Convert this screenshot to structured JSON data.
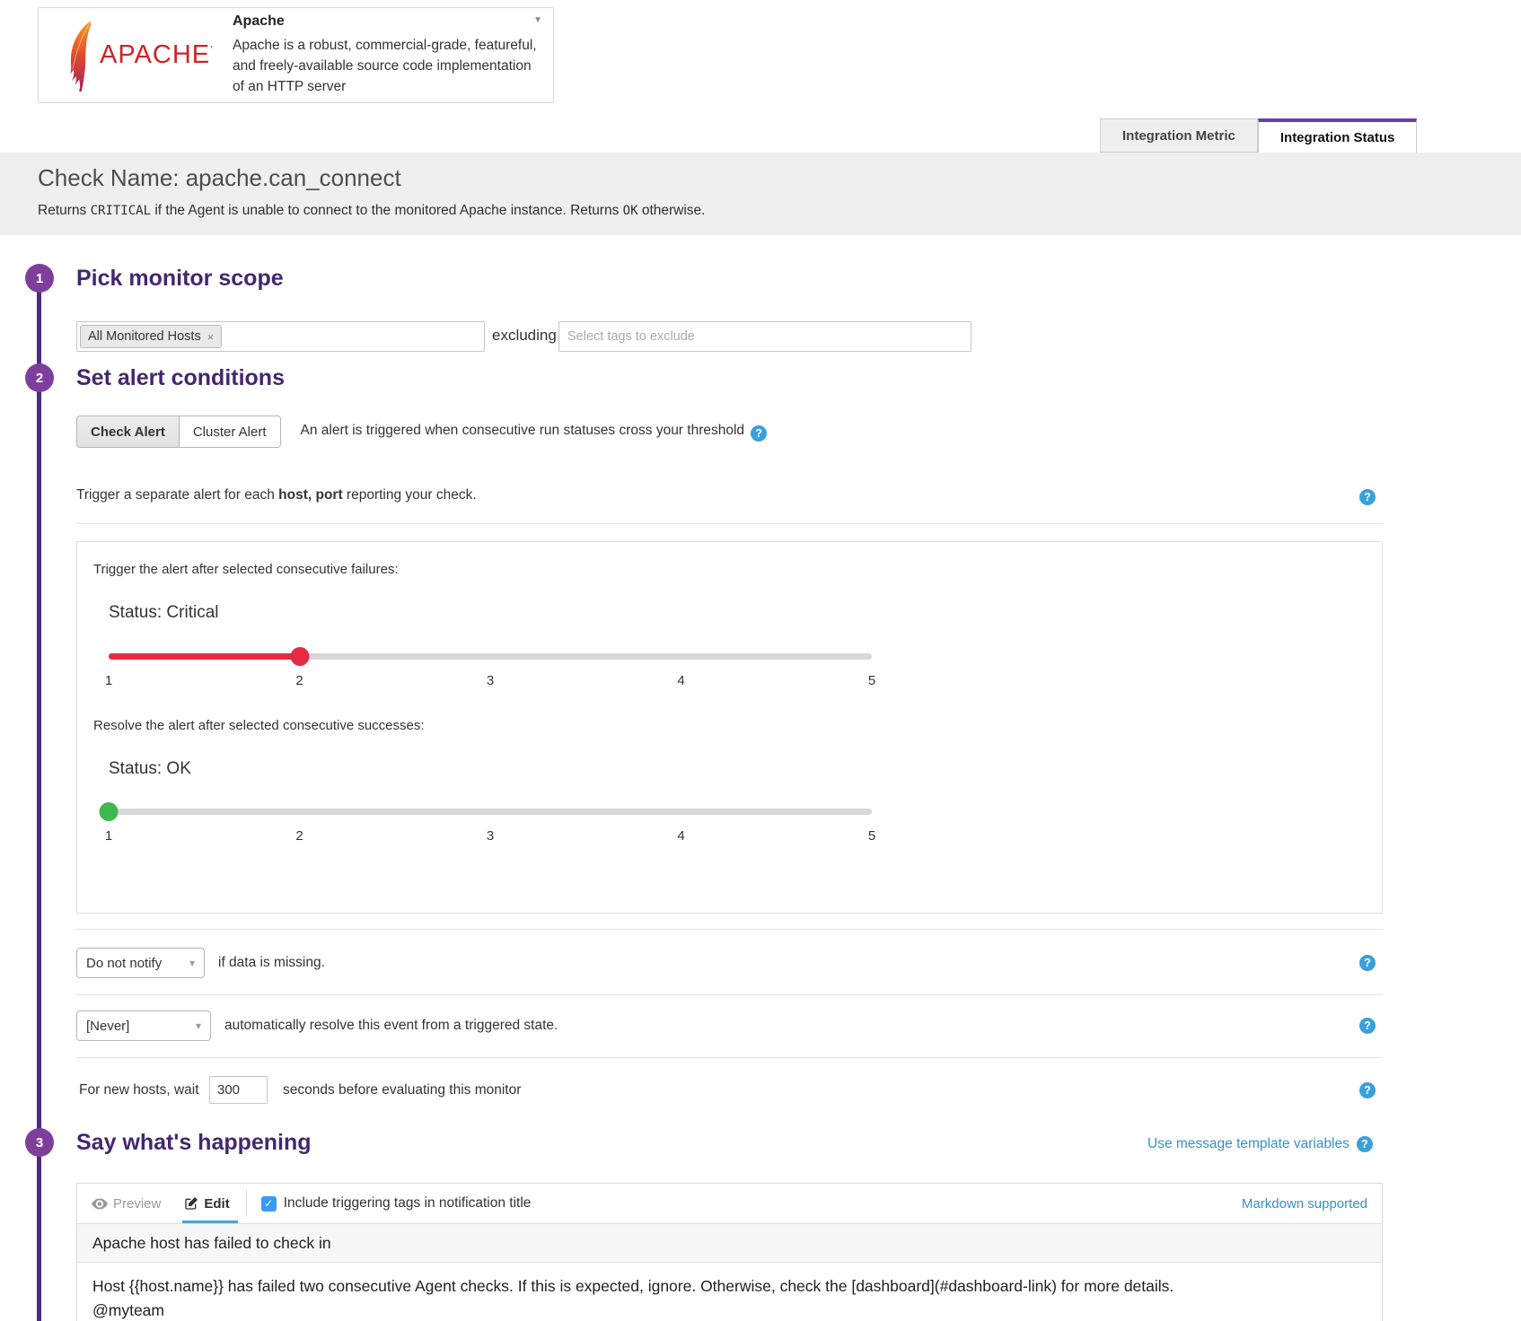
{
  "integration_card": {
    "logo_text": "APACHE",
    "logo_tm": "’",
    "title": "Apache",
    "description": "Apache is a robust, commercial-grade, featureful, and freely-available source code implementation of an HTTP server"
  },
  "tabs": [
    {
      "label": "Integration Metric",
      "active": false
    },
    {
      "label": "Integration Status",
      "active": true
    }
  ],
  "check_header": {
    "title": "Check Name: apache.can_connect",
    "desc_pre": "Returns ",
    "desc_code1": "CRITICAL",
    "desc_mid": " if the Agent is unable to connect to the monitored Apache instance. Returns ",
    "desc_code2": "OK",
    "desc_post": " otherwise."
  },
  "steps": {
    "one": "1",
    "two": "2",
    "three": "3"
  },
  "scope": {
    "heading": "Pick monitor scope",
    "tag": "All Monitored Hosts",
    "excluding_label": "excluding",
    "exclude_placeholder": "Select tags to exclude"
  },
  "alert_conditions": {
    "heading": "Set alert conditions",
    "check_alert": "Check Alert",
    "cluster_alert": "Cluster Alert",
    "trigger_note": "An alert is triggered when consecutive run statuses cross your threshold",
    "separate_pre": "Trigger a separate alert for each ",
    "separate_bold": "host, port",
    "separate_post": " reporting your check.",
    "failures_label": "Trigger the alert after selected consecutive failures:",
    "critical_status": "Status: Critical",
    "successes_label": "Resolve the alert after selected consecutive successes:",
    "ok_status": "Status: OK",
    "slider_ticks": [
      "1",
      "2",
      "3",
      "4",
      "5"
    ],
    "critical_value": 2,
    "ok_value": 1,
    "notify_dropdown": "Do not notify",
    "notify_label": "if data is missing.",
    "resolve_dropdown": "[Never]",
    "resolve_label": "automatically resolve this event from a triggered state.",
    "newhost_pre": "For new hosts, wait",
    "newhost_value": "300",
    "newhost_post": "seconds before evaluating this monitor"
  },
  "message": {
    "heading": "Say what's happening",
    "template_link": "Use message template variables",
    "preview_tab": "Preview",
    "edit_tab": "Edit",
    "include_tags_label": "Include triggering tags in notification title",
    "markdown_note": "Markdown supported",
    "title_value": "Apache host has failed to check in",
    "body_value": "Host {{host.name}} has failed two consecutive Agent checks. If this is expected, ignore. Otherwise, check the [dashboard](#dashboard-link) for more details.\n@myteam"
  },
  "icons": {
    "help": "?",
    "caret_down": "▾",
    "card_caret": "▼",
    "tag_remove": "×",
    "check": "✓"
  },
  "colors": {
    "purple_heading": "#44276f",
    "purple_accent": "#7e3f9c",
    "tab_purple": "#6b3f9e",
    "red_slider": "#e32b42",
    "green_slider": "#3cb84e",
    "blue_link": "#3193c7",
    "help_blue": "#3ba0d9"
  }
}
